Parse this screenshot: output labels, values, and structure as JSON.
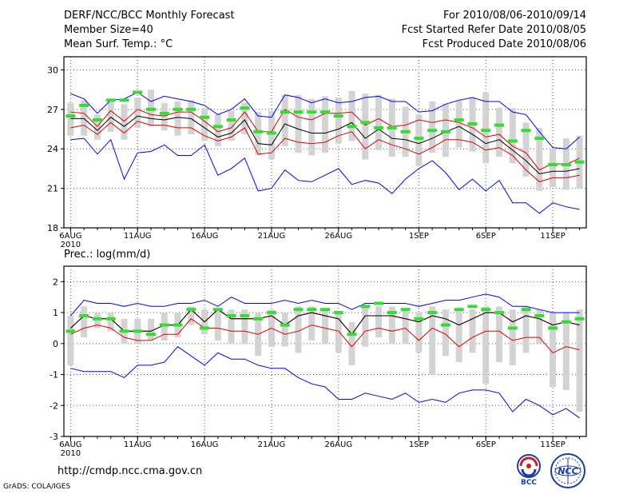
{
  "header": {
    "title": "DERF/NCC/BCC Monthly Forecast",
    "member_size": "Member Size=40",
    "variable": "Mean Surf. Temp.: °C",
    "for_period": "For 2010/08/06-2010/09/14",
    "fcst_started": "Fcst Started Refer Date 2010/08/05",
    "fcst_produced": "Fcst Produced Date 2010/08/06"
  },
  "footer": {
    "url": "http://cmdp.ncc.cma.gov.cn",
    "credit": "GrADS: COLA/IGES",
    "logo_left_text": "BCC",
    "logo_right_text": "NCC"
  },
  "colors": {
    "envelope": "#0000ff",
    "spread": "#dd0000",
    "mean": "#000000",
    "observed": "#33dd33",
    "bars": "#d3d3d3",
    "grid": "#555555"
  },
  "chart_data": [
    {
      "type": "line",
      "id": "temperature",
      "title": "Mean Surf. Temp.: °C",
      "ylim": [
        18,
        31
      ],
      "yticks": [
        18,
        21,
        24,
        27,
        30
      ],
      "xlim": [
        0.5,
        39.5
      ],
      "x_ticks": [
        {
          "day": 1,
          "label": "6AUG",
          "sub": "2010"
        },
        {
          "day": 6,
          "label": "11AUG"
        },
        {
          "day": 11,
          "label": "16AUG"
        },
        {
          "day": 16,
          "label": "21AUG"
        },
        {
          "day": 21,
          "label": "26AUG"
        },
        {
          "day": 27,
          "label": "1SEP"
        },
        {
          "day": 32,
          "label": "6SEP"
        },
        {
          "day": 37,
          "label": "11SEP"
        }
      ],
      "grid": true,
      "days": [
        1,
        2,
        3,
        4,
        5,
        6,
        7,
        8,
        9,
        10,
        11,
        12,
        13,
        14,
        15,
        16,
        17,
        18,
        19,
        20,
        21,
        22,
        23,
        24,
        25,
        26,
        27,
        28,
        29,
        30,
        31,
        32,
        33,
        34,
        35,
        36,
        37,
        38,
        39
      ],
      "series": [
        {
          "name": "max",
          "values": [
            28.2,
            27.8,
            26.7,
            27.7,
            27.8,
            28.3,
            27.6,
            28.0,
            27.8,
            27.6,
            27.3,
            26.6,
            27.0,
            27.8,
            26.5,
            26.4,
            28.1,
            27.9,
            27.5,
            27.8,
            27.5,
            27.6,
            27.9,
            28.0,
            27.6,
            27.6,
            26.8,
            26.9,
            27.4,
            27.7,
            27.9,
            27.6,
            27.6,
            26.8,
            26.6,
            25.3,
            24.1,
            24.0,
            24.9
          ]
        },
        {
          "name": "spread_upper",
          "values": [
            26.8,
            26.7,
            25.7,
            26.9,
            26.1,
            27.0,
            26.6,
            26.5,
            26.8,
            26.8,
            26.1,
            25.3,
            25.6,
            26.8,
            25.3,
            25.3,
            27.0,
            26.4,
            26.2,
            26.7,
            26.7,
            26.8,
            25.8,
            26.3,
            25.7,
            25.8,
            26.2,
            26.0,
            26.2,
            26.0,
            25.6,
            24.9,
            25.1,
            24.2,
            23.7,
            22.4,
            22.9,
            22.8,
            23.3
          ]
        },
        {
          "name": "mean",
          "values": [
            26.3,
            26.3,
            25.4,
            26.4,
            25.7,
            26.5,
            26.3,
            26.2,
            26.4,
            26.3,
            25.6,
            24.9,
            25.2,
            26.2,
            24.4,
            24.3,
            25.9,
            25.5,
            25.2,
            25.2,
            25.5,
            26.0,
            24.8,
            25.5,
            24.8,
            24.7,
            24.4,
            24.8,
            25.3,
            25.7,
            25.1,
            24.4,
            24.7,
            23.9,
            23.1,
            22.1,
            22.3,
            22.3,
            22.5
          ]
        },
        {
          "name": "spread_lower",
          "values": [
            25.6,
            25.8,
            25.1,
            26.0,
            25.2,
            26.1,
            25.8,
            25.8,
            25.6,
            25.6,
            25.0,
            24.6,
            24.9,
            25.6,
            23.6,
            23.7,
            24.8,
            24.5,
            24.4,
            24.5,
            25.0,
            25.3,
            24.0,
            24.7,
            24.3,
            24.0,
            23.6,
            24.1,
            24.7,
            24.7,
            24.5,
            23.9,
            24.1,
            23.5,
            22.4,
            21.5,
            21.8,
            21.8,
            22.0
          ]
        },
        {
          "name": "min",
          "values": [
            24.7,
            24.8,
            23.6,
            24.7,
            21.7,
            23.7,
            23.8,
            24.3,
            23.5,
            23.5,
            24.3,
            22.0,
            22.5,
            23.3,
            20.8,
            21.0,
            22.4,
            21.6,
            21.5,
            22.0,
            22.5,
            21.3,
            21.6,
            21.4,
            20.6,
            21.7,
            22.5,
            23.1,
            22.2,
            20.9,
            21.7,
            20.8,
            21.6,
            19.9,
            19.9,
            19.1,
            19.9,
            19.6,
            19.4
          ]
        },
        {
          "name": "bar_top",
          "values": [
            27.5,
            27.7,
            26.6,
            27.8,
            27.4,
            27.9,
            28.5,
            27.5,
            27.6,
            27.7,
            27.1,
            26.6,
            26.9,
            27.5,
            26.8,
            26.9,
            28.1,
            28.1,
            27.8,
            28.0,
            27.9,
            28.4,
            28.2,
            28.1,
            27.8,
            27.2,
            26.6,
            27.6,
            27.4,
            27.7,
            27.9,
            28.3,
            27.1,
            27.1,
            26.0,
            25.6,
            24.0,
            24.8,
            25.0
          ]
        },
        {
          "name": "bar_bottom",
          "values": [
            25.0,
            25.0,
            24.7,
            25.3,
            24.7,
            25.6,
            25.7,
            25.4,
            25.0,
            25.1,
            24.6,
            24.2,
            24.6,
            25.1,
            23.5,
            23.2,
            24.2,
            23.7,
            23.5,
            23.7,
            24.4,
            24.6,
            23.2,
            23.9,
            23.4,
            23.4,
            22.7,
            23.7,
            23.4,
            24.1,
            23.8,
            22.9,
            23.4,
            22.9,
            21.9,
            20.8,
            21.1,
            20.9,
            21.0
          ]
        },
        {
          "name": "observed",
          "values": [
            26.5,
            27.3,
            26.2,
            27.7,
            27.7,
            28.3,
            27.0,
            26.7,
            27.0,
            27.0,
            26.4,
            25.7,
            26.2,
            27.1,
            25.3,
            25.2,
            26.8,
            26.8,
            26.8,
            26.8,
            26.5,
            25.7,
            26.0,
            25.6,
            25.6,
            25.3,
            24.8,
            25.4,
            25.3,
            26.2,
            25.9,
            25.4,
            25.8,
            24.6,
            25.4,
            24.8,
            22.8,
            22.8,
            23.0
          ]
        }
      ]
    },
    {
      "type": "line",
      "id": "precipitation",
      "title": "Prec.: log(mm/d)",
      "ylim": [
        -3,
        2.5
      ],
      "yticks": [
        -3,
        -2,
        -1,
        0,
        1,
        2
      ],
      "xlim": [
        0.5,
        39.5
      ],
      "x_ticks": [
        {
          "day": 1,
          "label": "6AUG",
          "sub": "2010"
        },
        {
          "day": 6,
          "label": "11AUG"
        },
        {
          "day": 11,
          "label": "16AUG"
        },
        {
          "day": 16,
          "label": "21AUG"
        },
        {
          "day": 21,
          "label": "26AUG"
        },
        {
          "day": 27,
          "label": "1SEP"
        },
        {
          "day": 32,
          "label": "6SEP"
        },
        {
          "day": 37,
          "label": "11SEP"
        }
      ],
      "grid": true,
      "days": [
        1,
        2,
        3,
        4,
        5,
        6,
        7,
        8,
        9,
        10,
        11,
        12,
        13,
        14,
        15,
        16,
        17,
        18,
        19,
        20,
        21,
        22,
        23,
        24,
        25,
        26,
        27,
        28,
        29,
        30,
        31,
        32,
        33,
        34,
        35,
        36,
        37,
        38,
        39
      ],
      "series": [
        {
          "name": "max",
          "values": [
            0.9,
            1.4,
            1.3,
            1.3,
            1.2,
            1.3,
            1.2,
            1.2,
            1.3,
            1.3,
            1.4,
            1.2,
            1.5,
            1.3,
            1.3,
            1.3,
            1.4,
            1.3,
            1.4,
            1.3,
            1.3,
            1.1,
            1.3,
            1.3,
            1.3,
            1.3,
            1.2,
            1.3,
            1.4,
            1.4,
            1.5,
            1.6,
            1.5,
            1.2,
            1.2,
            1.1,
            1.0,
            1.0,
            1.0
          ]
        },
        {
          "name": "mean",
          "values": [
            0.5,
            0.9,
            0.8,
            0.8,
            0.4,
            0.4,
            0.4,
            0.6,
            0.6,
            1.1,
            0.7,
            1.1,
            0.8,
            0.8,
            0.8,
            0.9,
            0.6,
            0.9,
            1.0,
            0.9,
            0.8,
            0.3,
            0.9,
            0.9,
            0.9,
            0.8,
            0.7,
            0.9,
            0.8,
            0.6,
            0.8,
            1.0,
            1.0,
            0.7,
            0.9,
            0.8,
            0.6,
            0.7,
            0.6
          ]
        },
        {
          "name": "spread_upper",
          "values": [
            0.5,
            0.9,
            0.8,
            0.8,
            0.4,
            0.4,
            0.4,
            0.6,
            0.6,
            1.1,
            0.7,
            1.1,
            0.8,
            0.8,
            0.8,
            0.9,
            0.6,
            0.9,
            1.0,
            0.9,
            0.8,
            0.3,
            0.9,
            0.9,
            0.9,
            0.8,
            0.7,
            0.9,
            0.8,
            0.6,
            0.8,
            1.0,
            1.0,
            0.7,
            0.9,
            0.8,
            0.6,
            0.7,
            0.6
          ]
        },
        {
          "name": "spread_lower",
          "values": [
            0.3,
            0.5,
            0.6,
            0.5,
            0.2,
            0.1,
            0.1,
            0.3,
            0.3,
            0.8,
            0.5,
            0.5,
            0.4,
            0.4,
            0.3,
            0.5,
            0.3,
            0.4,
            0.6,
            0.5,
            0.4,
            -0.1,
            0.4,
            0.5,
            0.4,
            0.5,
            0.1,
            0.5,
            0.3,
            -0.1,
            0.2,
            0.4,
            0.4,
            0.1,
            0.2,
            0.2,
            -0.3,
            -0.1,
            -0.2
          ]
        },
        {
          "name": "min",
          "values": [
            -0.8,
            -0.9,
            -0.9,
            -0.9,
            -1.1,
            -0.7,
            -0.7,
            -0.6,
            -0.1,
            -0.4,
            -0.7,
            -0.3,
            -0.5,
            -0.5,
            -0.7,
            -0.8,
            -0.8,
            -1.1,
            -1.3,
            -1.4,
            -1.8,
            -1.8,
            -1.6,
            -1.7,
            -1.8,
            -1.6,
            -1.9,
            -1.8,
            -1.9,
            -1.6,
            -1.5,
            -1.5,
            -1.6,
            -2.2,
            -1.8,
            -2.0,
            -2.3,
            -2.1,
            -2.4
          ]
        },
        {
          "name": "bar_top",
          "values": [
            0.9,
            1.2,
            1.0,
            1.0,
            0.8,
            0.8,
            0.8,
            1.0,
            1.0,
            1.2,
            1.1,
            1.1,
            1.1,
            1.1,
            1.0,
            1.1,
            1.0,
            1.2,
            1.2,
            1.1,
            1.0,
            0.7,
            1.2,
            1.2,
            1.2,
            1.1,
            1.0,
            1.2,
            1.1,
            1.1,
            1.1,
            1.2,
            1.2,
            1.1,
            1.2,
            1.1,
            1.0,
            1.0,
            1.1
          ]
        },
        {
          "name": "bar_bottom",
          "values": [
            -0.7,
            0.2,
            0.5,
            0.4,
            0.0,
            0.0,
            0.1,
            0.1,
            0.2,
            0.6,
            0.3,
            0.1,
            0.0,
            0.0,
            -0.4,
            -0.1,
            -0.1,
            -0.3,
            0.1,
            0.0,
            -0.3,
            -0.7,
            -0.1,
            0.2,
            0.0,
            0.0,
            -0.3,
            -1.0,
            -0.4,
            -0.6,
            -0.3,
            -1.3,
            -0.6,
            -0.7,
            -0.3,
            0.0,
            -1.4,
            -1.5,
            -2.2
          ]
        },
        {
          "name": "observed",
          "values": [
            0.4,
            0.9,
            0.8,
            0.8,
            0.4,
            0.4,
            0.3,
            0.6,
            0.6,
            1.1,
            0.5,
            1.1,
            0.9,
            0.9,
            0.8,
            1.0,
            0.6,
            1.1,
            1.1,
            1.1,
            1.0,
            0.3,
            1.2,
            1.3,
            1.0,
            1.1,
            0.8,
            1.0,
            0.6,
            1.1,
            1.2,
            1.1,
            1.0,
            0.5,
            1.1,
            0.9,
            0.5,
            0.7,
            0.8
          ]
        }
      ]
    }
  ]
}
